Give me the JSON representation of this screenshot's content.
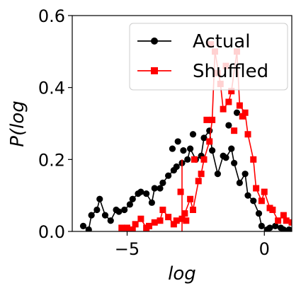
{
  "chart_data": {
    "type": "line",
    "xlabel": "log",
    "ylabel": "P(log",
    "xlim": [
      -7.0,
      1.0
    ],
    "ylim": [
      0.0,
      0.6
    ],
    "xticks": [
      -5,
      0
    ],
    "xtick_labels": [
      "−5",
      "0"
    ],
    "yticks": [
      0.0,
      0.2,
      0.4,
      0.6
    ],
    "ytick_labels": [
      "0.0",
      "0.2",
      "0.4",
      "0.6"
    ],
    "grid": false,
    "legend_position": "top-right",
    "series": [
      {
        "name": "Actual",
        "color": "#000000",
        "marker": "circle",
        "x": [
          -6.6,
          -6.4,
          -6.3,
          -6.1,
          -6.0,
          -5.8,
          -5.6,
          -5.4,
          -5.3,
          -5.1,
          -4.9,
          -4.8,
          -4.6,
          -4.5,
          -4.3,
          -4.1,
          -4.0,
          -3.8,
          -3.7,
          -3.5,
          -3.3,
          -3.2,
          -3.0,
          -2.8,
          -2.7,
          -2.5,
          -2.3,
          -2.2,
          -2.0,
          -1.9,
          -1.7,
          -1.5,
          -1.4,
          -1.2,
          -1.1,
          -0.9,
          -0.7,
          -0.6,
          -0.4,
          -0.2,
          -0.1,
          0.1,
          0.2,
          0.4,
          0.6,
          0.7,
          0.9
        ],
        "y": [
          0.015,
          0.005,
          0.045,
          0.06,
          0.09,
          0.045,
          0.03,
          0.06,
          0.055,
          0.06,
          0.075,
          0.09,
          0.105,
          0.11,
          0.105,
          0.08,
          0.12,
          0.12,
          0.135,
          0.155,
          0.17,
          0.18,
          0.19,
          0.2,
          0.23,
          0.2,
          0.21,
          0.26,
          0.28,
          0.225,
          0.16,
          0.21,
          0.205,
          0.23,
          0.19,
          0.135,
          0.16,
          0.1,
          0.085,
          0.05,
          0.015,
          0.005,
          0.01,
          0.015,
          0.01,
          0.005,
          0.005
        ],
        "extra_points": [
          {
            "x": -3.35,
            "y": 0.23
          },
          {
            "x": -3.15,
            "y": 0.25
          },
          {
            "x": -2.95,
            "y": 0.225
          },
          {
            "x": -2.6,
            "y": 0.27
          },
          {
            "x": -1.3,
            "y": 0.295
          },
          {
            "x": -1.0,
            "y": 0.33
          }
        ]
      },
      {
        "name": "Shuffled",
        "color": "#ff0000",
        "marker": "square",
        "x": [
          -5.2,
          -5.0,
          -4.8,
          -4.7,
          -4.5,
          -4.3,
          -4.2,
          -4.0,
          -3.8,
          -3.7,
          -3.5,
          -3.3,
          -3.2,
          -3.0,
          -2.9,
          -2.7,
          -2.6,
          -2.4,
          -2.3,
          -2.2,
          -2.0,
          -1.9,
          -1.8,
          -1.6,
          -1.5,
          -1.3,
          -1.2,
          -1.0,
          -0.9,
          -0.7,
          -0.6,
          -0.4,
          -0.3,
          -0.1,
          0.0,
          0.2,
          0.3,
          0.5,
          0.7,
          0.8,
          1.0
        ],
        "y": [
          0.01,
          0.01,
          0.005,
          0.02,
          0.035,
          0.01,
          0.015,
          0.025,
          0.03,
          0.06,
          0.04,
          0.02,
          0.03,
          0.035,
          0.05,
          0.09,
          0.06,
          0.14,
          0.16,
          0.2,
          0.25,
          0.31,
          0.5,
          0.41,
          0.34,
          0.36,
          0.39,
          0.5,
          0.35,
          0.33,
          0.27,
          0.2,
          0.12,
          0.085,
          0.11,
          0.065,
          0.06,
          0.03,
          0.045,
          0.03,
          0.025
        ],
        "extra_points": [
          {
            "x": -3.05,
            "y": 0.11
          },
          {
            "x": -2.85,
            "y": 0.03
          },
          {
            "x": -2.55,
            "y": 0.2
          },
          {
            "x": -2.1,
            "y": 0.31
          },
          {
            "x": -1.95,
            "y": 0.52
          },
          {
            "x": -1.7,
            "y": 0.44
          },
          {
            "x": -1.4,
            "y": 0.46
          },
          {
            "x": -1.1,
            "y": 0.28
          },
          {
            "x": -0.8,
            "y": 0.32
          }
        ],
        "vertical_line_x": -3.0
      }
    ]
  }
}
